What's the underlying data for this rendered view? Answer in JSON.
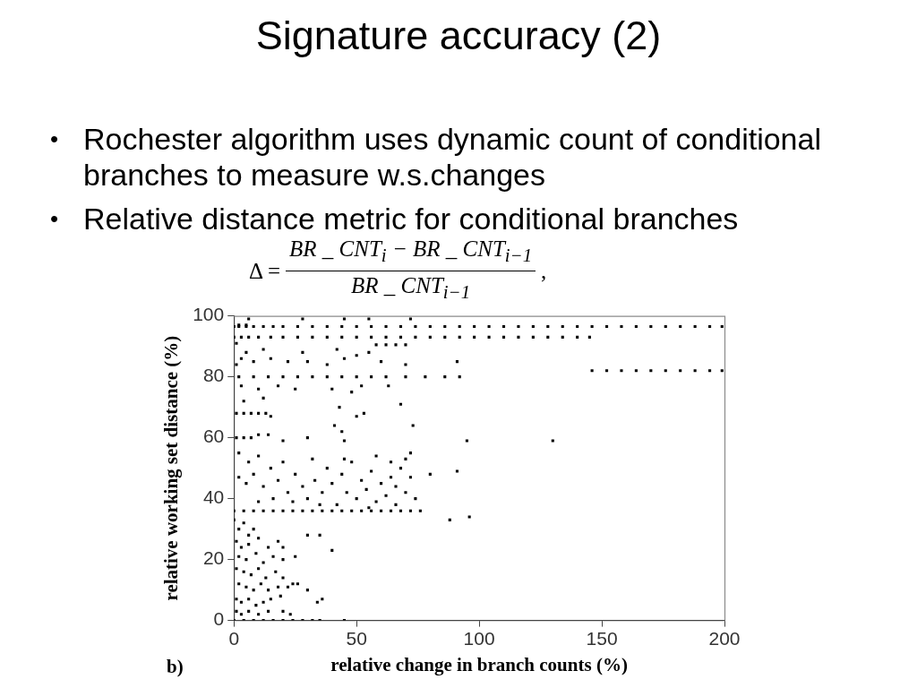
{
  "chart_data": {
    "type": "scatter",
    "title": "Signature accuracy (2)",
    "annotations": [
      "•",
      "Rochester algorithm uses dynamic count of conditional branches to measure w.s.changes",
      "•",
      "Relative distance metric for conditional branches",
      "Δ =",
      "BR _ CNT$_{i}$ − BR _ CNT$_{i−1}$",
      "BR _ CNT$_{i−1}$",
      ",",
      "b)"
    ],
    "xlabel": "relative change in branch counts (%)",
    "ylabel": "relative working set distance (%)",
    "color": "#000000",
    "marker": "square",
    "grid": false,
    "legend": false,
    "xlim": [
      0,
      200
    ],
    "ylim": [
      0,
      100
    ],
    "xticks": [
      0,
      50,
      100,
      150,
      200
    ],
    "yticks": [
      0,
      20,
      40,
      60,
      80,
      100
    ],
    "x": [
      0,
      2,
      5,
      8,
      12,
      16,
      20,
      26,
      32,
      38,
      44,
      50,
      56,
      62,
      68,
      74,
      80,
      86,
      92,
      98,
      104,
      110,
      116,
      122,
      128,
      134,
      140,
      146,
      152,
      158,
      164,
      170,
      176,
      182,
      188,
      194,
      199,
      0,
      3,
      6,
      10,
      15,
      20,
      26,
      32,
      38,
      44,
      50,
      56,
      62,
      68,
      74,
      80,
      86,
      92,
      98,
      104,
      110,
      116,
      122,
      128,
      134,
      140,
      145,
      58,
      62,
      66,
      70,
      1,
      2,
      5,
      1,
      146,
      152,
      158,
      164,
      170,
      176,
      182,
      188,
      194,
      199,
      2,
      8,
      14,
      20,
      26,
      32,
      38,
      44,
      50,
      56,
      62,
      70,
      78,
      86,
      92,
      3,
      8,
      15,
      22,
      30,
      38,
      45,
      50,
      60,
      70,
      5,
      12,
      28,
      42,
      55,
      3,
      10,
      18,
      25,
      40,
      48,
      52,
      63,
      91,
      4,
      12,
      6,
      28,
      45,
      55,
      72,
      1,
      4,
      7,
      10,
      13,
      15,
      41,
      44,
      50,
      73,
      68,
      43,
      53,
      1,
      4,
      7,
      10,
      14,
      20,
      30,
      45,
      95,
      130,
      72,
      91,
      70,
      80,
      2,
      6,
      10,
      15,
      2,
      5,
      8,
      12,
      18,
      22,
      25,
      28,
      30,
      33,
      36,
      38,
      40,
      42,
      44,
      46,
      48,
      50,
      52,
      54,
      56,
      58,
      60,
      62,
      64,
      66,
      68,
      70,
      72,
      74,
      20,
      32,
      45,
      58,
      64,
      35,
      55,
      24,
      16,
      10,
      66,
      0,
      4,
      8,
      12,
      16,
      20,
      24,
      28,
      32,
      36,
      40,
      44,
      48,
      52,
      56,
      60,
      64,
      68,
      72,
      76,
      88,
      96,
      0,
      2,
      4,
      6,
      8,
      1,
      3,
      6,
      10,
      14,
      18,
      20,
      2,
      5,
      9,
      12,
      16,
      20,
      25,
      30,
      35,
      40,
      1,
      4,
      7,
      10,
      13,
      17,
      20,
      24,
      2,
      5,
      8,
      11,
      14,
      18,
      22,
      1,
      3,
      6,
      9,
      12,
      15,
      19,
      26,
      30,
      34,
      36,
      1,
      3,
      6,
      10,
      14,
      20,
      23,
      0,
      4,
      8,
      12,
      16,
      20,
      24,
      28,
      32,
      35,
      45
    ],
    "values": [
      96.5,
      96.5,
      96.5,
      96.5,
      96.5,
      96.5,
      96.5,
      96.5,
      96.5,
      96.5,
      96.5,
      96.5,
      96.5,
      96.5,
      96.5,
      96.5,
      96.5,
      96.5,
      96.5,
      96.5,
      96.5,
      96.5,
      96.5,
      96.5,
      96.5,
      96.5,
      96.5,
      96.5,
      96.5,
      96.5,
      96.5,
      96.5,
      96.5,
      96.5,
      96.5,
      96.5,
      96.5,
      93,
      93,
      93,
      93,
      93,
      93,
      93,
      93,
      93,
      93,
      93,
      93,
      93,
      93,
      93,
      93,
      93,
      93,
      93,
      93,
      93,
      93,
      93,
      93,
      93,
      93,
      93,
      90.5,
      90.5,
      90.5,
      90.5,
      91,
      97,
      97,
      84,
      82,
      82,
      82,
      82,
      82,
      82,
      82,
      82,
      82,
      82,
      80,
      80,
      80,
      80,
      80,
      80,
      80,
      80,
      80,
      80,
      80,
      80,
      80,
      80,
      80,
      86,
      85,
      86,
      85,
      85,
      84,
      86,
      87,
      85,
      84,
      88,
      89,
      88,
      89,
      88,
      77,
      76,
      77,
      76,
      76,
      75,
      77,
      77,
      85,
      72,
      73,
      99,
      99,
      99,
      99,
      99,
      68,
      68,
      68,
      68,
      68,
      67,
      64,
      62,
      67,
      64,
      71,
      70,
      68,
      60,
      60,
      60,
      61,
      61,
      59,
      60,
      59,
      59,
      59,
      55,
      49,
      53,
      48,
      55,
      52,
      54,
      50,
      47,
      45,
      48,
      44,
      46,
      42,
      48,
      44,
      40,
      46,
      42,
      50,
      45,
      38,
      48,
      42,
      52,
      40,
      46,
      43,
      49,
      39,
      45,
      41,
      47,
      44,
      50,
      42,
      47,
      40,
      52,
      53,
      53,
      54,
      52,
      38,
      37,
      39,
      40,
      39,
      38,
      36,
      36,
      36,
      36,
      36,
      36,
      36,
      36,
      36,
      36,
      36,
      36,
      36,
      36,
      36,
      36,
      36,
      36,
      36,
      36,
      33,
      34,
      33,
      30,
      32,
      28,
      30,
      26,
      24,
      25,
      27,
      24,
      26,
      24,
      21,
      20,
      22,
      19,
      21,
      20,
      21,
      28,
      28,
      23,
      17,
      16,
      15,
      17,
      14,
      16,
      14,
      12,
      12,
      11,
      10,
      12,
      10,
      11,
      11,
      7,
      6,
      7,
      5,
      6,
      7,
      8,
      12,
      10,
      6,
      7,
      3,
      2,
      3,
      2,
      3,
      3,
      2,
      0,
      0,
      0,
      0,
      0,
      0,
      0,
      0,
      0,
      0,
      0
    ]
  }
}
